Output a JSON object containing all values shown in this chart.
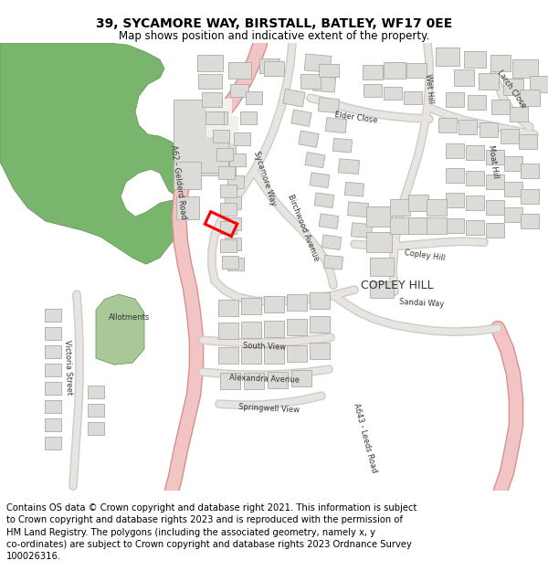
{
  "title": "39, SYCAMORE WAY, BIRSTALL, BATLEY, WF17 0EE",
  "subtitle": "Map shows position and indicative extent of the property.",
  "copyright_text": "Contains OS data © Crown copyright and database right 2021. This information is subject to Crown copyright and database rights 2023 and is reproduced with the permission of HM Land Registry. The polygons (including the associated geometry, namely x, y co-ordinates) are subject to Crown copyright and database rights 2023 Ordnance Survey 100026316.",
  "map_bg": "#f2f0ed",
  "green_light": "#7ab56e",
  "green_medium": "#5a9050",
  "green_allotment": "#a8c898",
  "road_pink_fill": "#f2c4c4",
  "road_pink_edge": "#d89090",
  "road_gray_fill": "#e8e4e0",
  "road_gray_edge": "#cccccc",
  "building_fill": "#dddbd8",
  "building_edge": "#aaaaaa",
  "highlight_color": "#ff0000",
  "title_fontsize": 10,
  "subtitle_fontsize": 8.5,
  "label_fontsize": 6.0,
  "copley_fontsize": 9,
  "copyright_fontsize": 7.2
}
